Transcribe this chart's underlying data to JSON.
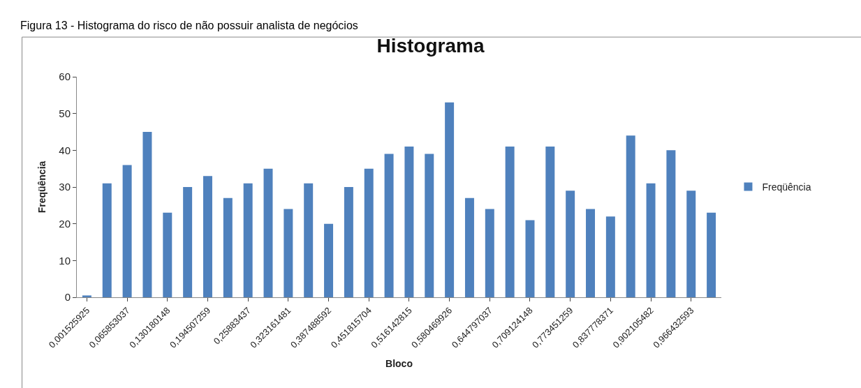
{
  "chart_data": {
    "type": "bar",
    "title": "Histograma",
    "xlabel": "Bloco",
    "ylabel": "Freqüência",
    "annotations": [
      "Figura 13 - Histograma do risco de não possuir analista de negócios"
    ],
    "categories": [
      "0,001525925",
      null,
      "0,065853037",
      null,
      "0,130180148",
      null,
      "0,194507259",
      null,
      "0,25883437",
      null,
      "0,323161481",
      null,
      "0,387488592",
      null,
      "0,451815704",
      null,
      "0,516142815",
      null,
      "0,580469926",
      null,
      "0,644797037",
      null,
      "0,709124148",
      null,
      "0,773451259",
      null,
      "0,837778371",
      null,
      "0,902105482",
      null,
      "0,966432593",
      null
    ],
    "series": [
      {
        "name": "Freqüência",
        "color": "#4f81bd",
        "values": [
          0.5,
          31,
          36,
          45,
          23,
          30,
          33,
          27,
          31,
          35,
          24,
          31,
          20,
          30,
          35,
          39,
          41,
          39,
          53,
          27,
          24,
          41,
          21,
          41,
          29,
          24,
          22,
          44,
          31,
          40,
          29,
          23
        ]
      }
    ],
    "ylim": [
      0,
      60
    ],
    "yticks": [
      0,
      10,
      20,
      30,
      40,
      50,
      60
    ],
    "grid": false,
    "legend": "right"
  }
}
